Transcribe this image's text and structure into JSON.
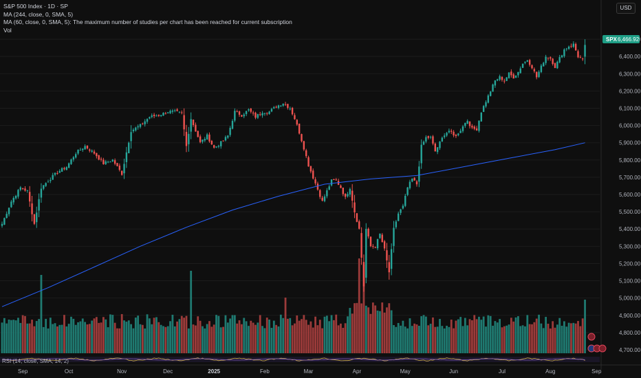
{
  "header": {
    "title": "S&P 500 Index · 1D · SP",
    "indicators": [
      "MA (244, close, 0, SMA, 5)",
      "MA (60, close, 0, SMA, 5): The maximum number of studies per chart has been reached for current subscription",
      "Vol"
    ],
    "currency": "USD",
    "rsi_label": "RSI (14, close, SMA, 14, 2)"
  },
  "price_tag": {
    "symbol": "SPX",
    "value": "6,466.92"
  },
  "colors": {
    "background": "#0f0f0f",
    "up": "#26a69a",
    "down": "#ef5350",
    "up_volume": "#1f7a71",
    "down_volume": "#9c3b3a",
    "ma": "#2962ff",
    "rsi": "#d4b24f",
    "tag_bg": "#1e9e86"
  },
  "chart_data": {
    "type": "candlestick",
    "symbol": "S&P 500 Index",
    "interval": "1D",
    "y_ticks": [
      "6,500.00",
      "6,400.00",
      "6,300.00",
      "6,200.00",
      "6,100.00",
      "6,000.00",
      "5,900.00",
      "5,800.00",
      "5,700.00",
      "5,600.00",
      "5,500.00",
      "5,400.00",
      "5,300.00",
      "5,200.00",
      "5,100.00",
      "5,000.00",
      "4,900.00",
      "4,800.00",
      "4,700.00"
    ],
    "y_tick_values": [
      6500,
      6400,
      6300,
      6200,
      6100,
      6000,
      5900,
      5800,
      5700,
      5600,
      5500,
      5400,
      5300,
      5200,
      5100,
      5000,
      4900,
      4800,
      4700
    ],
    "ylim": [
      4680,
      6560
    ],
    "x_ticks": [
      {
        "label": "Sep",
        "index": 9
      },
      {
        "label": "Oct",
        "index": 29
      },
      {
        "label": "Nov",
        "index": 52
      },
      {
        "label": "Dec",
        "index": 72
      },
      {
        "label": "2025",
        "index": 92
      },
      {
        "label": "Feb",
        "index": 114
      },
      {
        "label": "Mar",
        "index": 133
      },
      {
        "label": "Apr",
        "index": 154
      },
      {
        "label": "May",
        "index": 175
      },
      {
        "label": "Jun",
        "index": 196
      },
      {
        "label": "Jul",
        "index": 217
      },
      {
        "label": "Aug",
        "index": 238
      },
      {
        "label": "Sep",
        "index": 258
      }
    ],
    "key_points": [
      [
        0,
        5430
      ],
      [
        4,
        5560
      ],
      [
        8,
        5640
      ],
      [
        11,
        5620
      ],
      [
        14,
        5430
      ],
      [
        17,
        5640
      ],
      [
        20,
        5680
      ],
      [
        24,
        5730
      ],
      [
        28,
        5760
      ],
      [
        32,
        5840
      ],
      [
        36,
        5880
      ],
      [
        40,
        5840
      ],
      [
        44,
        5780
      ],
      [
        48,
        5800
      ],
      [
        52,
        5720
      ],
      [
        56,
        5970
      ],
      [
        60,
        6000
      ],
      [
        64,
        6050
      ],
      [
        68,
        6060
      ],
      [
        72,
        6080
      ],
      [
        75,
        6080
      ],
      [
        78,
        6070
      ],
      [
        80,
        5880
      ],
      [
        82,
        6040
      ],
      [
        86,
        5900
      ],
      [
        89,
        5940
      ],
      [
        92,
        5870
      ],
      [
        95,
        5900
      ],
      [
        98,
        5940
      ],
      [
        101,
        6080
      ],
      [
        104,
        6060
      ],
      [
        107,
        6090
      ],
      [
        110,
        6050
      ],
      [
        113,
        6080
      ],
      [
        116,
        6080
      ],
      [
        119,
        6110
      ],
      [
        122,
        6130
      ],
      [
        125,
        6100
      ],
      [
        127,
        6040
      ],
      [
        129,
        5960
      ],
      [
        131,
        5870
      ],
      [
        133,
        5770
      ],
      [
        135,
        5700
      ],
      [
        137,
        5630
      ],
      [
        139,
        5560
      ],
      [
        141,
        5620
      ],
      [
        143,
        5680
      ],
      [
        145,
        5680
      ],
      [
        147,
        5640
      ],
      [
        149,
        5580
      ],
      [
        151,
        5640
      ],
      [
        153,
        5500
      ],
      [
        155,
        5400
      ],
      [
        157,
        5070
      ],
      [
        158,
        5400
      ],
      [
        160,
        5300
      ],
      [
        162,
        5300
      ],
      [
        164,
        5370
      ],
      [
        166,
        5280
      ],
      [
        168,
        5150
      ],
      [
        170,
        5400
      ],
      [
        172,
        5490
      ],
      [
        174,
        5530
      ],
      [
        176,
        5640
      ],
      [
        178,
        5690
      ],
      [
        180,
        5660
      ],
      [
        182,
        5880
      ],
      [
        184,
        5930
      ],
      [
        186,
        5930
      ],
      [
        188,
        5850
      ],
      [
        190,
        5900
      ],
      [
        192,
        5950
      ],
      [
        194,
        5970
      ],
      [
        196,
        5940
      ],
      [
        198,
        5950
      ],
      [
        200,
        6000
      ],
      [
        202,
        6030
      ],
      [
        204,
        5980
      ],
      [
        206,
        5980
      ],
      [
        208,
        6080
      ],
      [
        210,
        6140
      ],
      [
        212,
        6200
      ],
      [
        214,
        6260
      ],
      [
        216,
        6280
      ],
      [
        218,
        6260
      ],
      [
        220,
        6300
      ],
      [
        222,
        6280
      ],
      [
        224,
        6310
      ],
      [
        226,
        6360
      ],
      [
        228,
        6380
      ],
      [
        230,
        6340
      ],
      [
        232,
        6280
      ],
      [
        234,
        6340
      ],
      [
        236,
        6400
      ],
      [
        238,
        6390
      ],
      [
        240,
        6340
      ],
      [
        242,
        6390
      ],
      [
        244,
        6440
      ],
      [
        246,
        6460
      ],
      [
        248,
        6470
      ],
      [
        250,
        6400
      ],
      [
        252,
        6380
      ],
      [
        253,
        6466.92
      ]
    ],
    "ma_244": [
      [
        0,
        4950
      ],
      [
        20,
        5060
      ],
      [
        40,
        5180
      ],
      [
        60,
        5300
      ],
      [
        80,
        5410
      ],
      [
        100,
        5510
      ],
      [
        120,
        5590
      ],
      [
        140,
        5660
      ],
      [
        160,
        5690
      ],
      [
        180,
        5710
      ],
      [
        200,
        5760
      ],
      [
        220,
        5810
      ],
      [
        240,
        5860
      ],
      [
        253,
        5900
      ]
    ],
    "last_price": 6466.92,
    "volume_note": "volume histogram, unscaled, no axis shown",
    "spikes": [
      {
        "index": 17,
        "volume": 1.9
      },
      {
        "index": 82,
        "volume": 2.0
      },
      {
        "index": 123,
        "volume": 1.35
      },
      {
        "index": 155,
        "volume": 2.3
      },
      {
        "index": 157,
        "volume": 2.15
      },
      {
        "index": 253,
        "volume": 1.3
      }
    ]
  }
}
